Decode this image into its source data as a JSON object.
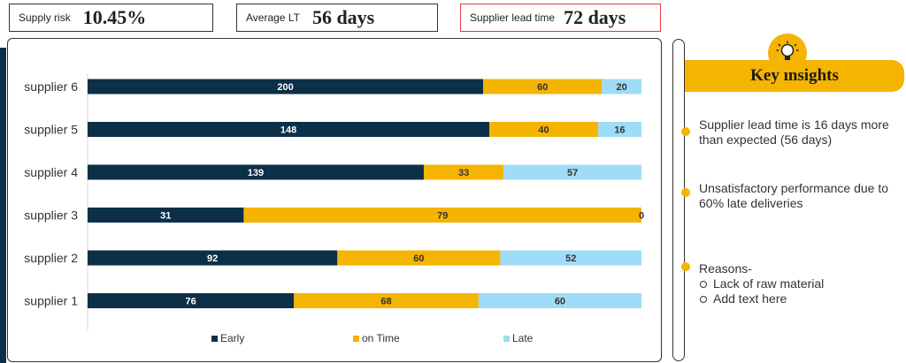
{
  "kpis": {
    "supply_risk": {
      "label": "Supply risk",
      "value": "10.45%"
    },
    "average_lt": {
      "label": "Average LT",
      "value": "56 days"
    },
    "supplier_lead_time": {
      "label": "Supplier lead time",
      "value": "72 days"
    }
  },
  "colors": {
    "early": "#0b3048",
    "on_time": "#f5b400",
    "late": "#9fdcf7",
    "alert_border": "#e03a3a"
  },
  "chart_data": {
    "type": "bar",
    "orientation": "horizontal",
    "stacked": "percent",
    "categories": [
      "supplier 6",
      "supplier 5",
      "supplier 4",
      "supplier 3",
      "supplier 2",
      "supplier 1"
    ],
    "series": [
      {
        "name": "Early",
        "color": "#0b3048",
        "label_color": "#ffffff",
        "values": [
          200,
          148,
          139,
          31,
          92,
          76
        ]
      },
      {
        "name": "on Time",
        "color": "#f5b400",
        "label_color": "#333333",
        "values": [
          60,
          40,
          33,
          79,
          60,
          68
        ]
      },
      {
        "name": "Late",
        "color": "#9fdcf7",
        "label_color": "#333333",
        "values": [
          20,
          16,
          57,
          0,
          52,
          60
        ]
      }
    ],
    "legend_position": "bottom",
    "grid": false
  },
  "insights": {
    "title": "Key insights",
    "icon": "lightbulb-icon",
    "points": [
      "Supplier lead time is 16 days more than expected (56 days)",
      "Unsatisfactory performance due to 60% late deliveries"
    ],
    "reasons_title": "Reasons-",
    "reasons": [
      "Lack of raw material",
      "Add text here"
    ]
  }
}
